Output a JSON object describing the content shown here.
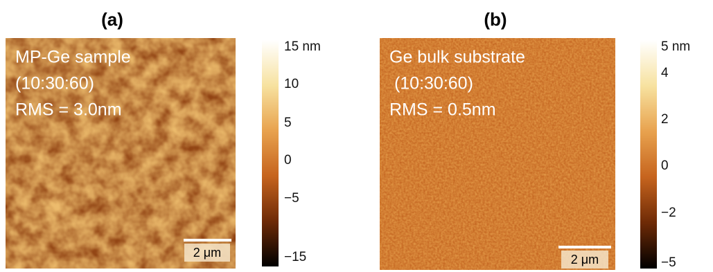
{
  "panels": [
    {
      "title": "(a)",
      "annotations": [
        "MP-Ge sample",
        "(10:30:60)",
        "RMS = 3.0nm"
      ],
      "scale_bar": "2 μm",
      "colorbar_labels": [
        "15 nm",
        "10",
        "5",
        "0",
        "−5",
        "−15"
      ]
    },
    {
      "title": "(b)",
      "annotations": [
        "Ge bulk substrate",
        " (10:30:60)",
        "RMS = 0.5nm"
      ],
      "scale_bar": "2 μm",
      "colorbar_labels": [
        "5 nm",
        "4",
        "2",
        "0",
        "−2",
        "−5"
      ]
    }
  ]
}
